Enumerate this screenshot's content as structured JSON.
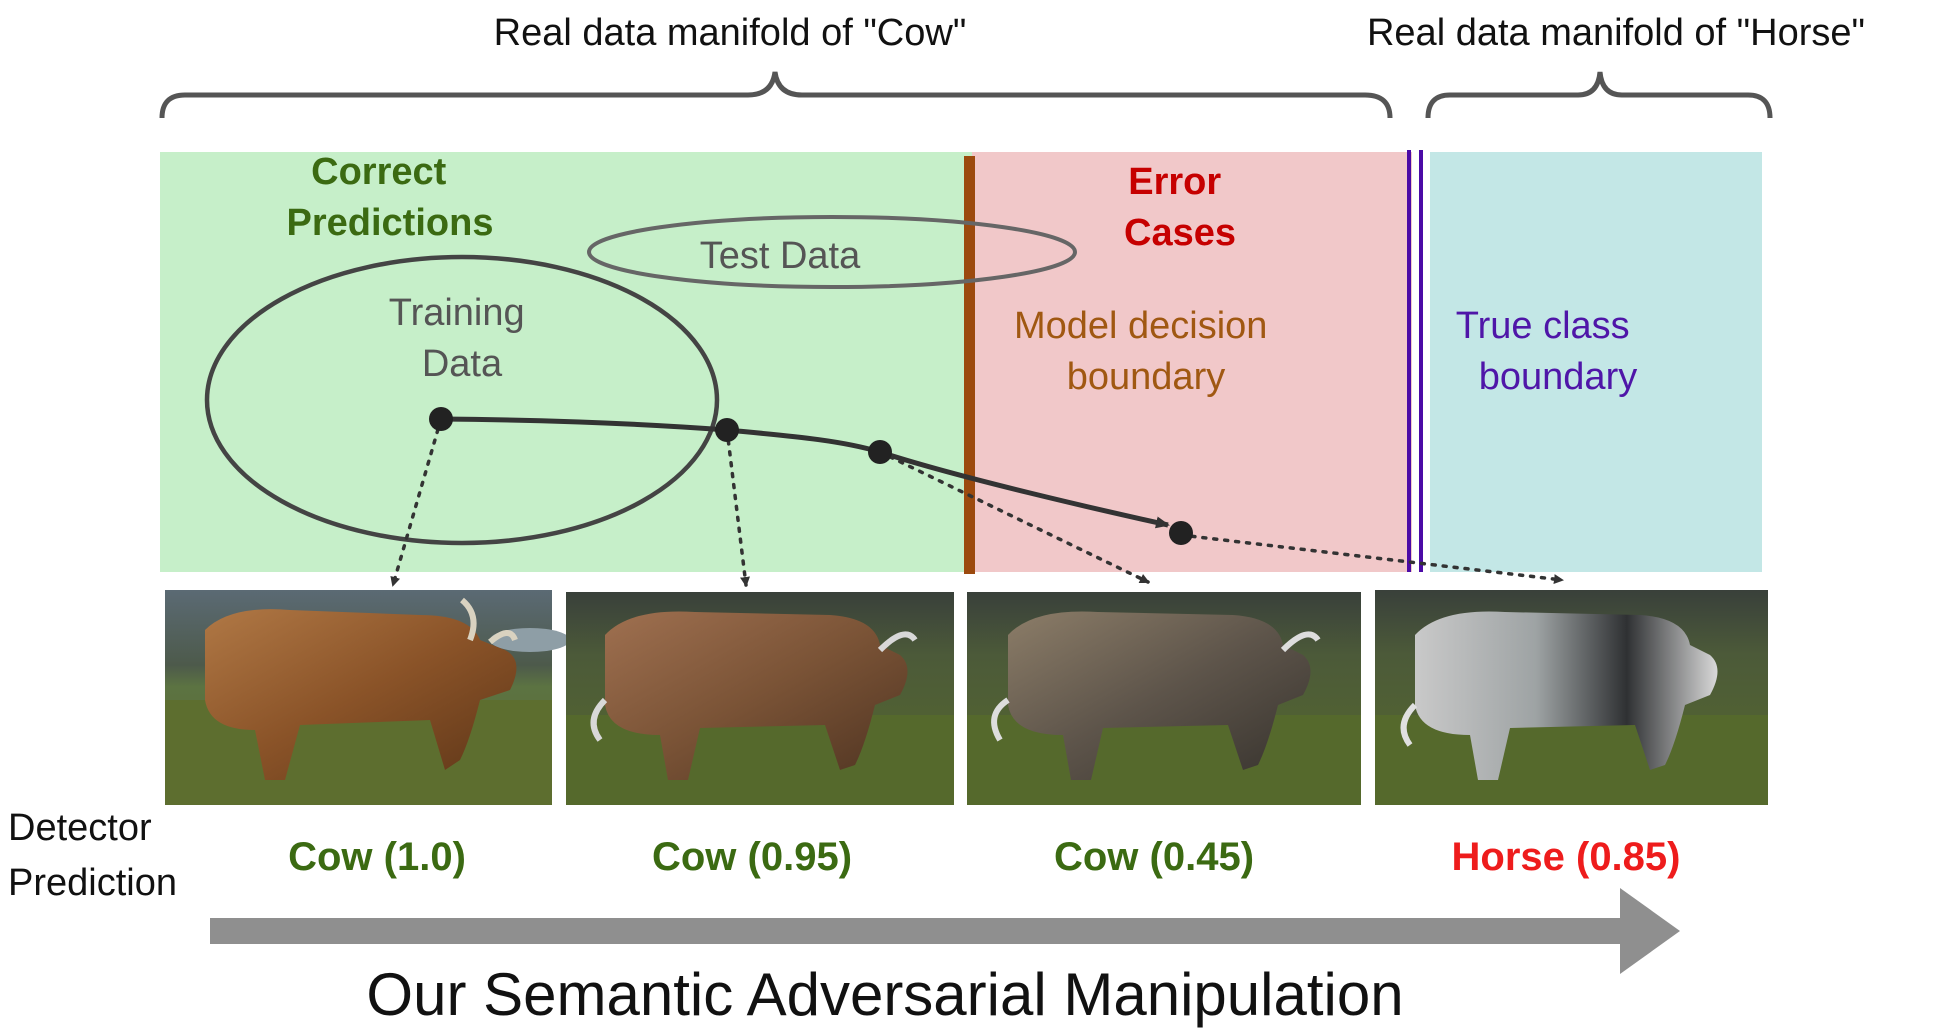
{
  "manifolds": {
    "cow": "Real data manifold of \"Cow\"",
    "horse": "Real data manifold of  \"Horse\""
  },
  "regions": {
    "correct_line1": "Correct",
    "correct_line2": "Predictions",
    "error_line1": "Error",
    "error_line2": "Cases",
    "model_boundary_line1": "Model decision",
    "model_boundary_line2": "boundary",
    "true_boundary_line1": "True class",
    "true_boundary_line2": "boundary",
    "test_data": "Test Data",
    "training_line1": "Training",
    "training_line2": "Data"
  },
  "detector": {
    "label_line1": "Detector",
    "label_line2": "Prediction",
    "predictions": [
      "Cow (1.0)",
      "Cow (0.95)",
      "Cow (0.45)",
      "Horse (0.85)"
    ]
  },
  "footer": {
    "caption": "Our Semantic Adversarial Manipulation"
  },
  "colors": {
    "correct_bg": "#c6efc9",
    "error_bg": "#f1c8c9",
    "horse_bg": "#c3e7e6",
    "model_boundary": "#9c4a0e",
    "true_boundary": "#4b0aa6",
    "correct_text": "#3b6a12",
    "error_text": "#c60000",
    "model_text": "#a05812",
    "true_text": "#4f16a8",
    "horse_pred": "#ee1c1c",
    "arrow": "#8f8f8f"
  }
}
